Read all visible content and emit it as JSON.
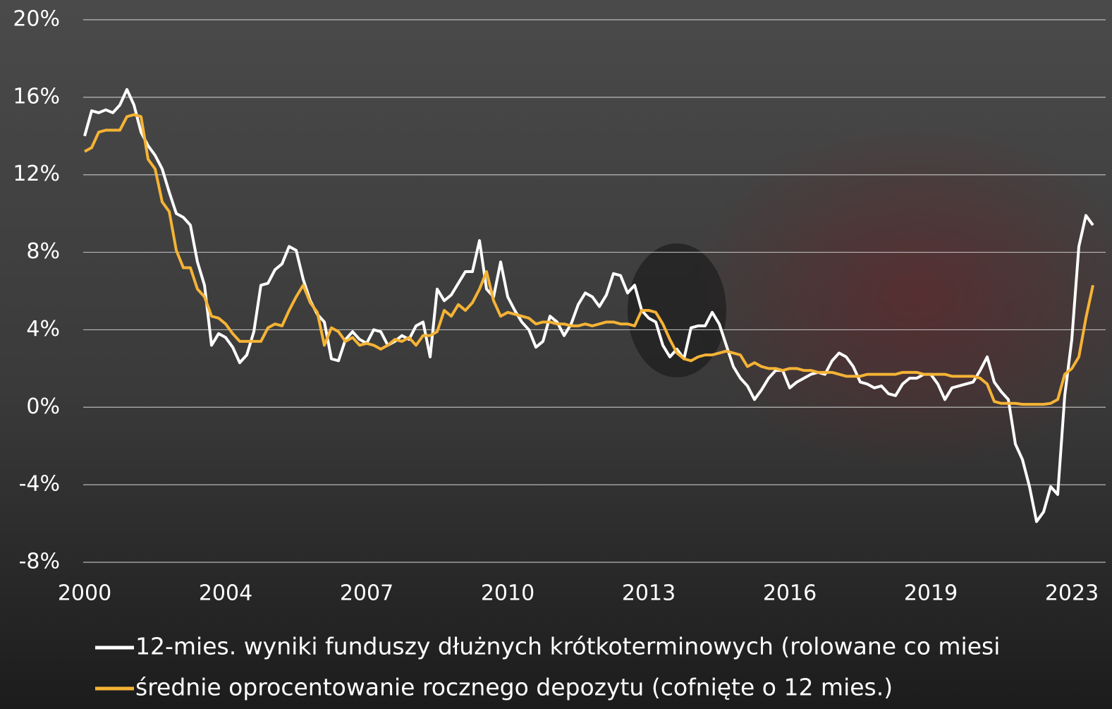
{
  "chart_data": {
    "type": "line",
    "categories": [
      "2000",
      null,
      null,
      null,
      null,
      null,
      null,
      null,
      null,
      null,
      null,
      null,
      null,
      null,
      null,
      null,
      null,
      null,
      null,
      null,
      "2004",
      null,
      null,
      null,
      null,
      null,
      null,
      null,
      null,
      null,
      null,
      null,
      null,
      null,
      null,
      null,
      null,
      null,
      null,
      null,
      "2007",
      null,
      null,
      null,
      null,
      null,
      null,
      null,
      null,
      null,
      null,
      null,
      null,
      null,
      null,
      null,
      null,
      null,
      null,
      null,
      "2010",
      null,
      null,
      null,
      null,
      null,
      null,
      null,
      null,
      null,
      null,
      null,
      null,
      null,
      null,
      null,
      null,
      null,
      null,
      null,
      "2013",
      null,
      null,
      null,
      null,
      null,
      null,
      null,
      null,
      null,
      null,
      null,
      null,
      null,
      null,
      null,
      null,
      null,
      null,
      null,
      "2016",
      null,
      null,
      null,
      null,
      null,
      null,
      null,
      null,
      null,
      null,
      null,
      null,
      null,
      null,
      null,
      null,
      null,
      null,
      null,
      "2019",
      null,
      null,
      null,
      null,
      null,
      null,
      null,
      null,
      null,
      null,
      null,
      null,
      null,
      null,
      null,
      null,
      null,
      null,
      null,
      "2023",
      null,
      null,
      null
    ],
    "series": [
      {
        "name": "12-mies. wyniki funduszy dłużnych krótkoterminowych (rolowane co miesi",
        "color": "#ffffff",
        "values": [
          14.0,
          15.3,
          15.2,
          15.35,
          15.2,
          15.6,
          16.4,
          15.6,
          14.2,
          13.5,
          13.0,
          12.3,
          11.1,
          10.0,
          9.8,
          9.4,
          7.5,
          6.3,
          3.2,
          3.8,
          3.6,
          3.1,
          2.3,
          2.7,
          3.9,
          6.3,
          6.4,
          7.1,
          7.4,
          8.3,
          8.1,
          6.6,
          5.5,
          4.8,
          4.4,
          2.5,
          2.4,
          3.5,
          3.9,
          3.5,
          3.3,
          4.0,
          3.9,
          3.2,
          3.4,
          3.7,
          3.5,
          4.2,
          4.4,
          2.6,
          6.1,
          5.5,
          5.8,
          6.4,
          7.0,
          7.0,
          8.6,
          6.1,
          5.7,
          7.5,
          5.7,
          5.0,
          4.4,
          4.0,
          3.1,
          3.4,
          4.7,
          4.4,
          3.7,
          4.3,
          5.3,
          5.9,
          5.7,
          5.2,
          5.8,
          6.9,
          6.8,
          5.9,
          6.3,
          5.0,
          4.6,
          4.4,
          3.2,
          2.6,
          3.0,
          2.5,
          4.1,
          4.2,
          4.2,
          4.9,
          4.3,
          3.2,
          2.1,
          1.5,
          1.1,
          0.4,
          0.9,
          1.5,
          1.9,
          1.9,
          1.0,
          1.3,
          1.5,
          1.7,
          1.8,
          1.7,
          2.4,
          2.8,
          2.6,
          2.1,
          1.3,
          1.2,
          1.0,
          1.1,
          0.7,
          0.6,
          1.2,
          1.5,
          1.5,
          1.7,
          1.7,
          1.2,
          0.4,
          1.0,
          1.1,
          1.2,
          1.3,
          1.9,
          2.6,
          1.3,
          0.8,
          0.4,
          -1.9,
          -2.7,
          -4.1,
          -5.9,
          -5.4,
          -4.1,
          -4.5,
          0.6,
          3.5,
          8.3,
          9.9,
          9.4
        ]
      },
      {
        "name": "średnie oprocentowanie rocznego depozytu (cofnięte o 12 mies.)",
        "color": "#f5b335",
        "values": [
          13.2,
          13.4,
          14.2,
          14.3,
          14.3,
          14.3,
          15.0,
          15.1,
          15.0,
          12.8,
          12.3,
          10.6,
          10.1,
          8.1,
          7.2,
          7.2,
          6.1,
          5.7,
          4.7,
          4.6,
          4.3,
          3.8,
          3.4,
          3.4,
          3.4,
          3.4,
          4.1,
          4.3,
          4.2,
          5.0,
          5.7,
          6.3,
          5.4,
          4.9,
          3.2,
          4.1,
          3.9,
          3.4,
          3.6,
          3.2,
          3.3,
          3.2,
          3.0,
          3.2,
          3.5,
          3.4,
          3.6,
          3.2,
          3.7,
          3.7,
          3.9,
          5.0,
          4.7,
          5.3,
          5.0,
          5.4,
          6.1,
          7.0,
          5.5,
          4.7,
          4.9,
          4.8,
          4.7,
          4.6,
          4.3,
          4.4,
          4.4,
          4.3,
          4.3,
          4.2,
          4.2,
          4.3,
          4.2,
          4.3,
          4.4,
          4.4,
          4.3,
          4.3,
          4.2,
          5.0,
          5.0,
          4.9,
          4.3,
          3.5,
          2.8,
          2.5,
          2.4,
          2.6,
          2.7,
          2.7,
          2.8,
          2.9,
          2.8,
          2.7,
          2.1,
          2.3,
          2.1,
          2.0,
          2.0,
          1.9,
          2.0,
          2.0,
          1.9,
          1.9,
          1.8,
          1.8,
          1.8,
          1.7,
          1.6,
          1.6,
          1.6,
          1.7,
          1.7,
          1.7,
          1.7,
          1.7,
          1.8,
          1.8,
          1.8,
          1.7,
          1.7,
          1.7,
          1.7,
          1.6,
          1.6,
          1.6,
          1.6,
          1.5,
          1.2,
          0.3,
          0.2,
          0.2,
          0.2,
          0.15,
          0.15,
          0.15,
          0.15,
          0.2,
          0.4,
          1.7,
          2.0,
          2.6,
          4.6,
          6.3
        ]
      }
    ],
    "ylim": [
      -8,
      20
    ],
    "yticks": [
      {
        "value": -8,
        "label": "-8%"
      },
      {
        "value": -4,
        "label": "-4%"
      },
      {
        "value": 0,
        "label": "0%"
      },
      {
        "value": 4,
        "label": "4%"
      },
      {
        "value": 8,
        "label": "8%"
      },
      {
        "value": 12,
        "label": "12%"
      },
      {
        "value": 16,
        "label": "16%"
      },
      {
        "value": 20,
        "label": "20%"
      }
    ],
    "grid": true
  }
}
